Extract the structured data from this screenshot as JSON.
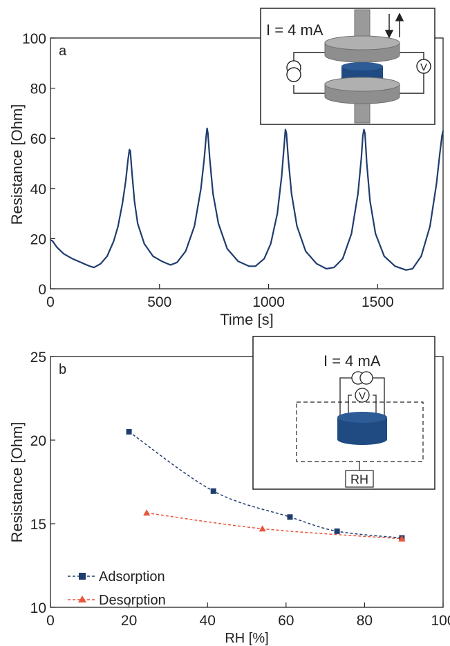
{
  "colors": {
    "adsorption": "#1f3c6e",
    "desorption": "#e8553b",
    "axis": "#222222",
    "gray": "#9a9a9a",
    "gray_dark": "#6f6f6f",
    "sample": "#1f4a82"
  },
  "chart_data": [
    {
      "type": "line",
      "panel_label": "a",
      "xlabel": "Time [s]",
      "ylabel": "Resistance [Ohm]",
      "xlim": [
        0,
        1800
      ],
      "ylim": [
        0,
        100
      ],
      "xticks": [
        0,
        500,
        1000,
        1500
      ],
      "yticks": [
        0,
        20,
        40,
        60,
        80,
        100
      ],
      "grid": false,
      "series": [
        {
          "values_x": [
            0,
            10,
            30,
            60,
            100,
            140,
            180,
            200,
            230,
            260,
            290,
            310,
            330,
            345,
            355,
            362,
            366,
            372,
            385,
            400,
            430,
            470,
            510,
            550,
            580,
            620,
            660,
            690,
            705,
            714,
            718,
            722,
            730,
            745,
            770,
            810,
            860,
            910,
            940,
            980,
            1010,
            1040,
            1060,
            1072,
            1077,
            1082,
            1090,
            1105,
            1130,
            1170,
            1220,
            1265,
            1300,
            1340,
            1380,
            1410,
            1425,
            1432,
            1437,
            1442,
            1450,
            1465,
            1490,
            1530,
            1580,
            1630,
            1660,
            1700,
            1740,
            1770,
            1785,
            1795,
            1800
          ],
          "values_y": [
            19.5,
            19,
            16.5,
            14,
            12,
            10.5,
            9,
            8.5,
            10,
            13,
            19,
            25,
            34,
            43,
            51,
            55.5,
            55,
            48,
            35,
            26,
            18,
            13,
            11,
            9.5,
            10.5,
            15,
            25,
            40,
            52,
            61,
            64,
            62,
            52,
            38,
            26,
            16,
            11,
            9,
            9,
            12,
            18,
            30,
            45,
            58,
            63.5,
            62,
            52,
            38,
            25,
            15,
            10,
            8,
            8.5,
            12,
            22,
            38,
            52,
            61,
            63.5,
            62,
            50,
            35,
            22,
            13,
            9,
            7.5,
            8,
            13,
            25,
            42,
            54,
            61,
            63
          ]
        }
      ],
      "inset": {
        "label": "I = 4 mA",
        "voltmeter_symbol": "V"
      }
    },
    {
      "type": "line",
      "panel_label": "b",
      "xlabel": "RH [%]",
      "ylabel": "Resistance [Ohm]",
      "xlim": [
        0,
        100
      ],
      "ylim": [
        10,
        25
      ],
      "xticks": [
        0,
        20,
        40,
        60,
        80,
        100
      ],
      "yticks": [
        10,
        15,
        20,
        25
      ],
      "grid": false,
      "legend_position": "bottom-left",
      "series": [
        {
          "name": "Adsorption",
          "marker": "square",
          "x": [
            20,
            41.5,
            61,
            73,
            89.5
          ],
          "y": [
            20.5,
            16.95,
            15.4,
            14.55,
            14.15
          ]
        },
        {
          "name": "Desorption",
          "marker": "triangle",
          "x": [
            24.5,
            54,
            89.5
          ],
          "y": [
            15.65,
            14.7,
            14.1
          ]
        }
      ],
      "inset": {
        "label": "I = 4 mA",
        "voltmeter_symbol": "V",
        "chamber_label": "RH"
      }
    }
  ]
}
